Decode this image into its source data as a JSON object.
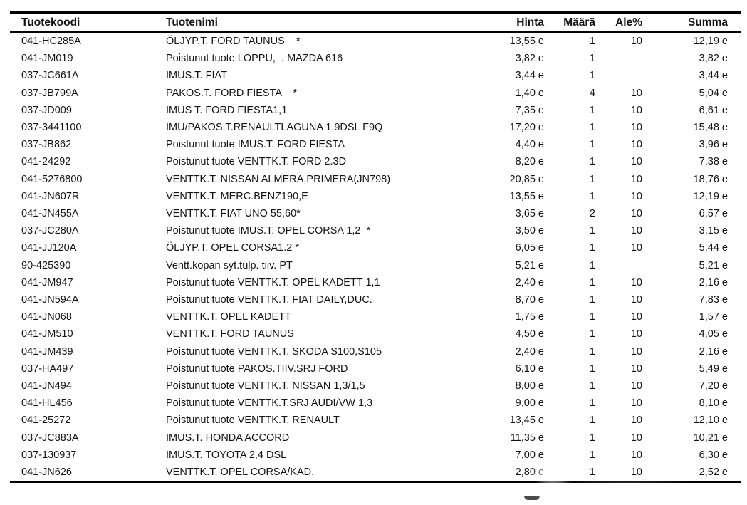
{
  "document": {
    "columns": [
      {
        "key": "code",
        "label": "Tuotekoodi"
      },
      {
        "key": "name",
        "label": "Tuotenimi"
      },
      {
        "key": "price",
        "label": "Hinta"
      },
      {
        "key": "qty",
        "label": "Määrä"
      },
      {
        "key": "discount",
        "label": "Ale%"
      },
      {
        "key": "sum",
        "label": "Summa"
      }
    ],
    "rows": [
      {
        "code": "041-HC285A",
        "name": "ÖLJYP.T. FORD TAUNUS    *",
        "price": "13,55 e",
        "qty": "1",
        "discount": "10",
        "sum": "12,19 e"
      },
      {
        "code": "041-JM019",
        "name": "Poistunut tuote LOPPU,  . MAZDA 616",
        "price": "3,82 e",
        "qty": "1",
        "discount": "",
        "sum": "3,82 e"
      },
      {
        "code": "037-JC661A",
        "name": "IMUS.T. FIAT",
        "price": "3,44 e",
        "qty": "1",
        "discount": "",
        "sum": "3,44 e"
      },
      {
        "code": "037-JB799A",
        "name": "PAKOS.T. FORD FIESTA    *",
        "price": "1,40 e",
        "qty": "4",
        "discount": "10",
        "sum": "5,04 e"
      },
      {
        "code": "037-JD009",
        "name": "IMUS T. FORD FIESTA1,1",
        "price": "7,35 e",
        "qty": "1",
        "discount": "10",
        "sum": "6,61 e"
      },
      {
        "code": "037-3441100",
        "name": "IMU/PAKOS.T.RENAULTLAGUNA 1,9DSL F9Q",
        "price": "17,20 e",
        "qty": "1",
        "discount": "10",
        "sum": "15,48 e"
      },
      {
        "code": "037-JB862",
        "name": "Poistunut tuote IMUS.T. FORD FIESTA",
        "price": "4,40 e",
        "qty": "1",
        "discount": "10",
        "sum": "3,96 e"
      },
      {
        "code": "041-24292",
        "name": "Poistunut tuote VENTTK.T. FORD 2.3D",
        "price": "8,20 e",
        "qty": "1",
        "discount": "10",
        "sum": "7,38 e"
      },
      {
        "code": "041-5276800",
        "name": "VENTTK.T. NISSAN ALMERA,PRIMERA(JN798)",
        "price": "20,85 e",
        "qty": "1",
        "discount": "10",
        "sum": "18,76 e"
      },
      {
        "code": "041-JN607R",
        "name": "VENTTK.T. MERC.BENZ190,E",
        "price": "13,55 e",
        "qty": "1",
        "discount": "10",
        "sum": "12,19 e"
      },
      {
        "code": "041-JN455A",
        "name": "VENTTK.T. FIAT UNO 55,60*",
        "price": "3,65 e",
        "qty": "2",
        "discount": "10",
        "sum": "6,57 e"
      },
      {
        "code": "037-JC280A",
        "name": "Poistunut tuote IMUS.T. OPEL CORSA 1,2  *",
        "price": "3,50 e",
        "qty": "1",
        "discount": "10",
        "sum": "3,15 e"
      },
      {
        "code": "041-JJ120A",
        "name": "ÖLJYP.T. OPEL CORSA1.2 *",
        "price": "6,05 e",
        "qty": "1",
        "discount": "10",
        "sum": "5,44 e"
      },
      {
        "code": "90-425390",
        "name": "Ventt.kopan syt.tulp. tiiv. PT",
        "price": "5,21 e",
        "qty": "1",
        "discount": "",
        "sum": "5,21 e"
      },
      {
        "code": "041-JM947",
        "name": "Poistunut tuote VENTTK.T. OPEL KADETT 1,1",
        "price": "2,40 e",
        "qty": "1",
        "discount": "10",
        "sum": "2,16 e"
      },
      {
        "code": "041-JN594A",
        "name": "Poistunut tuote VENTTK.T. FIAT DAILY,DUC.",
        "price": "8,70 e",
        "qty": "1",
        "discount": "10",
        "sum": "7,83 e"
      },
      {
        "code": "041-JN068",
        "name": "VENTTK.T. OPEL KADETT",
        "price": "1,75 e",
        "qty": "1",
        "discount": "10",
        "sum": "1,57 e"
      },
      {
        "code": "041-JM510",
        "name": "VENTTK.T. FORD TAUNUS",
        "price": "4,50 e",
        "qty": "1",
        "discount": "10",
        "sum": "4,05 e"
      },
      {
        "code": "041-JM439",
        "name": "Poistunut tuote VENTTK.T. SKODA S100,S105",
        "price": "2,40 e",
        "qty": "1",
        "discount": "10",
        "sum": "2,16 e"
      },
      {
        "code": "037-HA497",
        "name": "Poistunut tuote PAKOS.TIIV.SRJ FORD",
        "price": "6,10 e",
        "qty": "1",
        "discount": "10",
        "sum": "5,49 e"
      },
      {
        "code": "041-JN494",
        "name": "Poistunut tuote VENTTK.T. NISSAN 1,3/1,5",
        "price": "8,00 e",
        "qty": "1",
        "discount": "10",
        "sum": "7,20 e"
      },
      {
        "code": "041-HL456",
        "name": "Poistunut tuote VENTTK.T.SRJ AUDI/VW 1,3",
        "price": "9,00 e",
        "qty": "1",
        "discount": "10",
        "sum": "8,10 e"
      },
      {
        "code": "041-25272",
        "name": "Poistunut tuote VENTTK.T. RENAULT",
        "price": "13,45 e",
        "qty": "1",
        "discount": "10",
        "sum": "12,10 e"
      },
      {
        "code": "037-JC883A",
        "name": "IMUS.T. HONDA ACCORD",
        "price": "11,35 e",
        "qty": "1",
        "discount": "10",
        "sum": "10,21 e"
      },
      {
        "code": "037-130937",
        "name": "IMUS.T. TOYOTA 2,4 DSL",
        "price": "7,00 e",
        "qty": "1",
        "discount": "10",
        "sum": "6,30 e"
      },
      {
        "code": "041-JN626",
        "name": "VENTTK.T. OPEL CORSA/KAD.",
        "price": "2,80 e",
        "qty": "1",
        "discount": "10",
        "sum": "2,52 e"
      }
    ]
  }
}
